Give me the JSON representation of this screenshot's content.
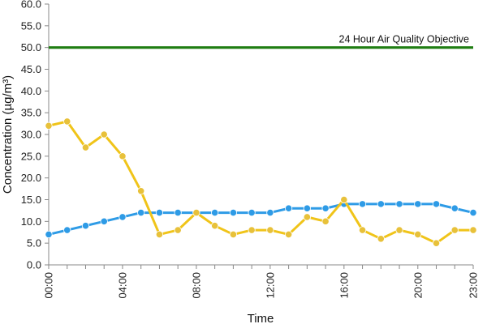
{
  "chart_data": {
    "type": "line",
    "title": "",
    "xlabel": "Time",
    "ylabel": "Concentration (µg/m³)",
    "ylim": [
      0,
      60
    ],
    "ytick_step": 5,
    "ytick_labels": [
      "0.0",
      "5.0",
      "10.0",
      "15.0",
      "20.0",
      "25.0",
      "30.0",
      "35.0",
      "40.0",
      "45.0",
      "50.0",
      "55.0",
      "60.0"
    ],
    "x": [
      0,
      1,
      2,
      3,
      4,
      5,
      6,
      7,
      8,
      9,
      10,
      11,
      12,
      13,
      14,
      15,
      16,
      17,
      18,
      19,
      20,
      21,
      22,
      23
    ],
    "x_tick_labels": [
      {
        "x": 0,
        "label": "00:00"
      },
      {
        "x": 4,
        "label": "04:00"
      },
      {
        "x": 8,
        "label": "08:00"
      },
      {
        "x": 12,
        "label": "12:00"
      },
      {
        "x": 16,
        "label": "16:00"
      },
      {
        "x": 20,
        "label": "20:00"
      },
      {
        "x": 23,
        "label": "23:00"
      }
    ],
    "grid": false,
    "legend": "none",
    "series": [
      {
        "color": "#2e9be6",
        "marker_color": "#2e9be6",
        "values": [
          7,
          8,
          9,
          10,
          11,
          12,
          12,
          12,
          12,
          12,
          12,
          12,
          12,
          13,
          13,
          13,
          14,
          14,
          14,
          14,
          14,
          14,
          13,
          12
        ]
      },
      {
        "color": "#f0c419",
        "marker_color": "#e8c13a",
        "values": [
          32,
          33,
          27,
          30,
          25,
          17,
          7,
          8,
          12,
          9,
          7,
          8,
          8,
          7,
          11,
          10,
          15,
          8,
          6,
          8,
          7,
          5,
          8,
          8
        ]
      }
    ],
    "reference_lines": [
      {
        "y": 50,
        "label": "24 Hour Air Quality Objective",
        "color": "#1f7d12"
      }
    ]
  }
}
